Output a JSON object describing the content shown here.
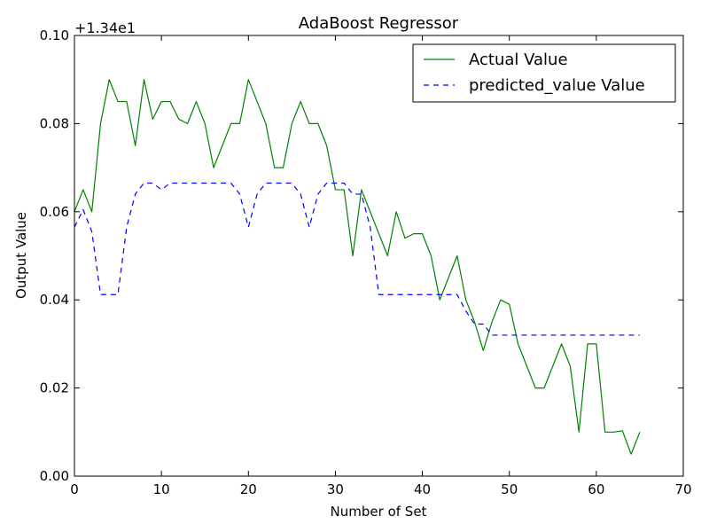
{
  "chart_data": {
    "type": "line",
    "title": "AdaBoost Regressor",
    "xlabel": "Number of Set",
    "ylabel": "Output Value",
    "offset_label": "+1.34e1",
    "xlim": [
      0,
      70
    ],
    "ylim": [
      0.0,
      0.1
    ],
    "xticks": [
      0,
      10,
      20,
      30,
      40,
      50,
      60,
      70
    ],
    "yticks": [
      0.0,
      0.02,
      0.04,
      0.06,
      0.08,
      0.1
    ],
    "xtick_labels": [
      "0",
      "10",
      "20",
      "30",
      "40",
      "50",
      "60",
      "70"
    ],
    "ytick_labels": [
      "0.00",
      "0.02",
      "0.04",
      "0.06",
      "0.08",
      "0.10"
    ],
    "grid": false,
    "legend_position": "top-right",
    "x": [
      0,
      1,
      2,
      3,
      4,
      5,
      6,
      7,
      8,
      9,
      10,
      11,
      12,
      13,
      14,
      15,
      16,
      17,
      18,
      19,
      20,
      21,
      22,
      23,
      24,
      25,
      26,
      27,
      28,
      29,
      30,
      31,
      32,
      33,
      34,
      35,
      36,
      37,
      38,
      39,
      40,
      41,
      42,
      43,
      44,
      45,
      46,
      47,
      48,
      49,
      50,
      51,
      52,
      53,
      54,
      55,
      56,
      57,
      58,
      59,
      60,
      61,
      62,
      63,
      64,
      65
    ],
    "series": [
      {
        "name": "Actual Value",
        "color": "#008000",
        "style": "solid",
        "values": [
          0.06,
          0.065,
          0.06,
          0.08,
          0.09,
          0.085,
          0.085,
          0.075,
          0.09,
          0.081,
          0.085,
          0.085,
          0.081,
          0.08,
          0.085,
          0.08,
          0.07,
          0.075,
          0.08,
          0.08,
          0.09,
          0.085,
          0.08,
          0.07,
          0.07,
          0.08,
          0.085,
          0.08,
          0.08,
          0.075,
          0.065,
          0.065,
          0.05,
          0.065,
          0.06,
          0.055,
          0.05,
          0.06,
          0.054,
          0.055,
          0.055,
          0.05,
          0.04,
          0.045,
          0.05,
          0.04,
          0.035,
          0.0285,
          0.035,
          0.04,
          0.039,
          0.03,
          0.025,
          0.02,
          0.02,
          0.025,
          0.03,
          0.025,
          0.01,
          0.03,
          0.03,
          0.01,
          0.01,
          0.0103,
          0.005,
          0.01
        ]
      },
      {
        "name": "predicted_value Value",
        "color": "#0000ff",
        "style": "dashed",
        "values": [
          0.0565,
          0.0605,
          0.0555,
          0.0412,
          0.0412,
          0.0412,
          0.0565,
          0.064,
          0.0665,
          0.0665,
          0.065,
          0.0665,
          0.0665,
          0.0665,
          0.0665,
          0.0665,
          0.0665,
          0.0665,
          0.0665,
          0.064,
          0.0565,
          0.064,
          0.0665,
          0.0665,
          0.0665,
          0.0665,
          0.064,
          0.0565,
          0.064,
          0.0665,
          0.0665,
          0.0665,
          0.064,
          0.064,
          0.0565,
          0.0412,
          0.0412,
          0.0412,
          0.0412,
          0.0412,
          0.0412,
          0.0412,
          0.0412,
          0.0412,
          0.0412,
          0.0375,
          0.0345,
          0.0345,
          0.032,
          0.032,
          0.032,
          0.032,
          0.032,
          0.032,
          0.032,
          0.032,
          0.032,
          0.032,
          0.032,
          0.032,
          0.032,
          0.032,
          0.032,
          0.032,
          0.032,
          0.032
        ]
      }
    ]
  }
}
